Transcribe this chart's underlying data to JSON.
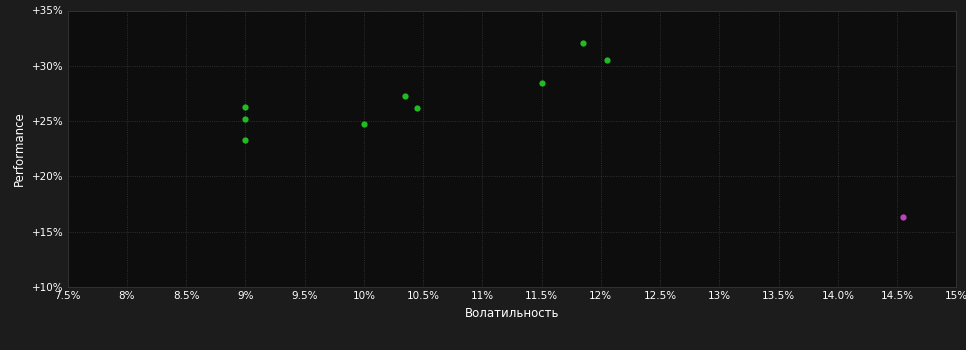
{
  "background_color": "#1c1c1c",
  "plot_bg_color": "#0d0d0d",
  "grid_color": "#3a3a3a",
  "text_color": "#ffffff",
  "xlabel": "Волатильность",
  "ylabel": "Performance",
  "xlim": [
    0.075,
    0.15
  ],
  "ylim": [
    0.1,
    0.35
  ],
  "xticks": [
    0.075,
    0.08,
    0.085,
    0.09,
    0.095,
    0.1,
    0.105,
    0.11,
    0.115,
    0.12,
    0.125,
    0.13,
    0.135,
    0.14,
    0.145,
    0.15
  ],
  "yticks": [
    0.1,
    0.15,
    0.2,
    0.25,
    0.3,
    0.35
  ],
  "green_points": [
    [
      0.09,
      0.263
    ],
    [
      0.09,
      0.252
    ],
    [
      0.09,
      0.233
    ],
    [
      0.1,
      0.247
    ],
    [
      0.1035,
      0.273
    ],
    [
      0.1045,
      0.262
    ],
    [
      0.115,
      0.284
    ],
    [
      0.1185,
      0.321
    ],
    [
      0.1205,
      0.305
    ]
  ],
  "purple_point": [
    0.1455,
    0.163
  ],
  "green_color": "#22bb22",
  "purple_color": "#bb44bb",
  "marker_size": 4.5
}
